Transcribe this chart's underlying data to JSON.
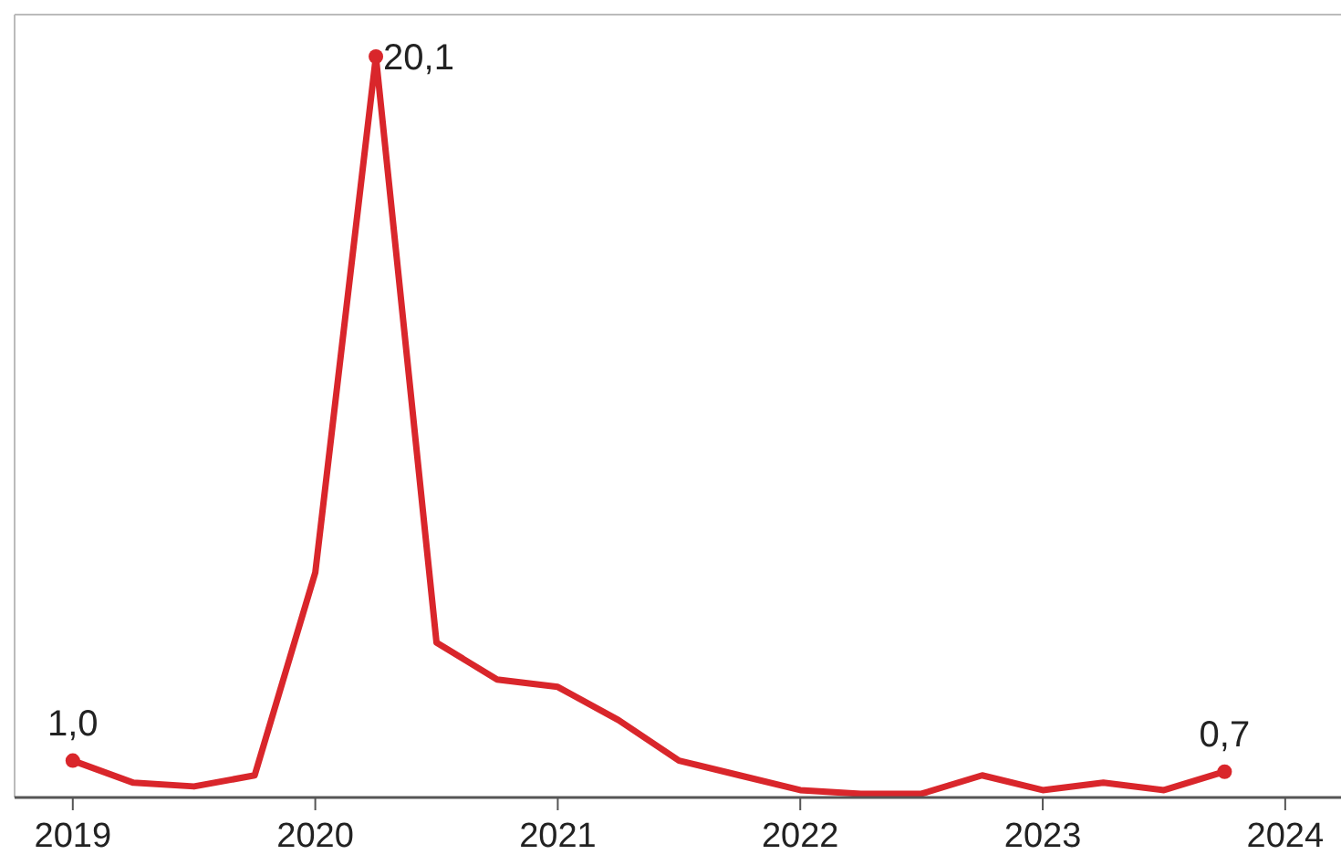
{
  "chart_data": {
    "type": "line",
    "x": [
      2019,
      2019.25,
      2019.5,
      2019.75,
      2020,
      2020.25,
      2020.5,
      2020.75,
      2021,
      2021.25,
      2021.5,
      2021.75,
      2022,
      2022.25,
      2022.5,
      2022.75,
      2023,
      2023.25,
      2023.5,
      2023.75
    ],
    "series": [
      {
        "color": "#d9262b",
        "values": [
          1.0,
          0.4,
          0.3,
          0.6,
          6.1,
          20.1,
          4.2,
          3.2,
          3.0,
          2.1,
          1.0,
          0.6,
          0.2,
          0.1,
          0.1,
          0.6,
          0.2,
          0.4,
          0.2,
          0.7
        ],
        "value_labels": [
          "1,0",
          null,
          null,
          null,
          null,
          "20,1",
          null,
          null,
          null,
          null,
          null,
          null,
          null,
          null,
          null,
          null,
          null,
          null,
          null,
          "0,7"
        ]
      }
    ],
    "xlim": [
      2018.76,
      2024.23
    ],
    "xticks": [
      2019,
      2020,
      2021,
      2022,
      2023,
      2024
    ]
  }
}
